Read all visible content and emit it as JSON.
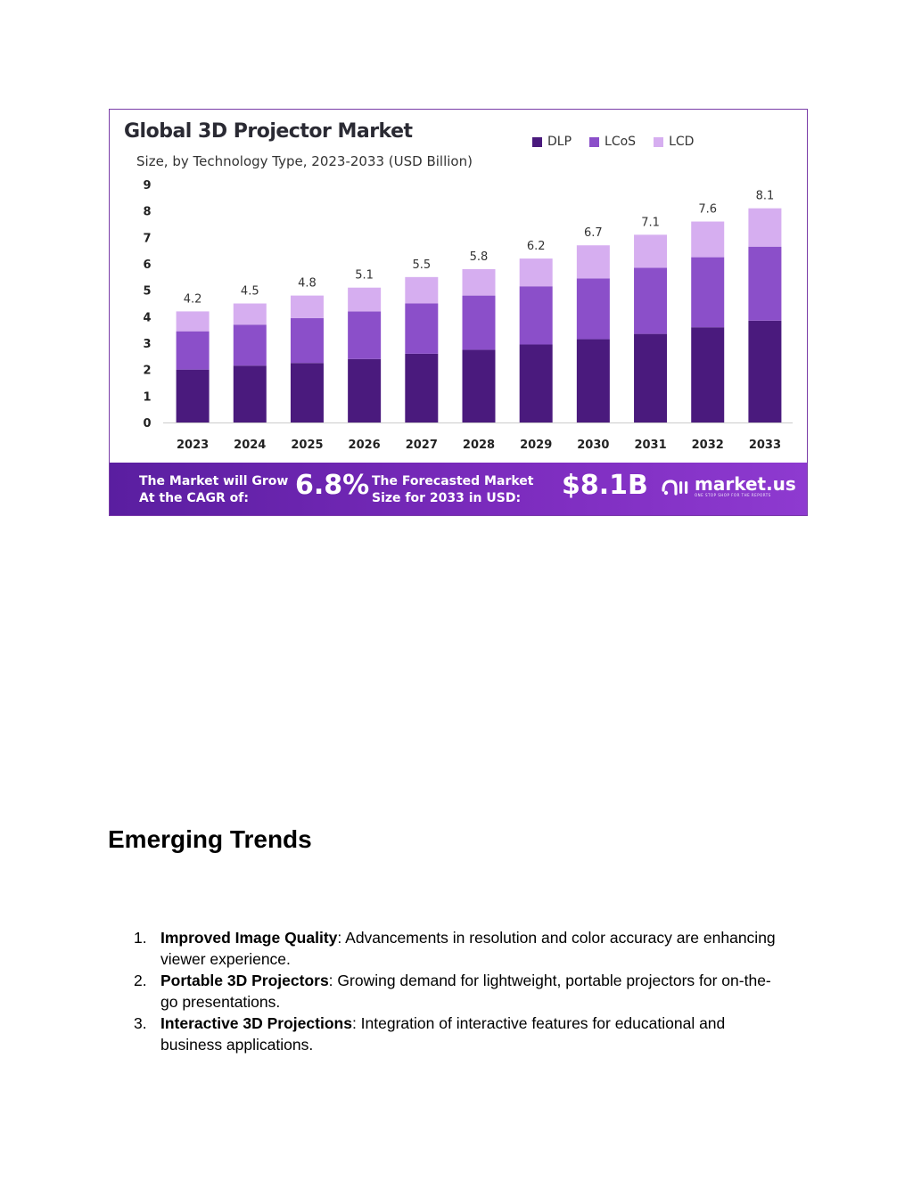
{
  "figure": {
    "title": "Global 3D Projector Market",
    "subtitle": "Size, by Technology Type, 2023-2033 (USD Billion)",
    "banner": {
      "growth_text": "The Market will Grow At the CAGR of:",
      "cagr_value": "6.8%",
      "forecast_text": "The Forecasted Market Size for 2033 in USD:",
      "forecast_value": "$8.1B",
      "brand_name": "market.us",
      "brand_tagline": "ONE STOP SHOP FOR THE REPORTS"
    },
    "colors": {
      "DLP": "#4a1a7d",
      "LCoS": "#8b4fc9",
      "LCD": "#d6aef0",
      "frame": "#7a3ca8"
    }
  },
  "chart_data": {
    "type": "bar",
    "stacked": true,
    "title": "Global 3D Projector Market",
    "subtitle": "Size, by Technology Type, 2023-2033 (USD Billion)",
    "categories": [
      "2023",
      "2024",
      "2025",
      "2026",
      "2027",
      "2028",
      "2029",
      "2030",
      "2031",
      "2032",
      "2033"
    ],
    "series": [
      {
        "name": "DLP",
        "values": [
          2.0,
          2.15,
          2.25,
          2.4,
          2.6,
          2.75,
          2.95,
          3.15,
          3.35,
          3.6,
          3.85
        ]
      },
      {
        "name": "LCoS",
        "values": [
          1.45,
          1.55,
          1.7,
          1.8,
          1.9,
          2.05,
          2.2,
          2.3,
          2.5,
          2.65,
          2.8
        ]
      },
      {
        "name": "LCD",
        "values": [
          0.75,
          0.8,
          0.85,
          0.9,
          1.0,
          1.0,
          1.05,
          1.25,
          1.25,
          1.35,
          1.45
        ]
      }
    ],
    "totals": [
      "4.2",
      "4.5",
      "4.8",
      "5.1",
      "5.5",
      "5.8",
      "6.2",
      "6.7",
      "7.1",
      "7.6",
      "8.1"
    ],
    "yticks": [
      "0",
      "1",
      "2",
      "3",
      "4",
      "5",
      "6",
      "7",
      "8",
      "9"
    ],
    "ylim": [
      0,
      9
    ],
    "grid": false,
    "legend_position": "top-right"
  },
  "section": {
    "heading": "Emerging Trends",
    "items": [
      {
        "number": "1.",
        "term": "Improved Image Quality",
        "text": ": Advancements in resolution and color accuracy are enhancing viewer experience."
      },
      {
        "number": "2.",
        "term": "Portable 3D Projectors",
        "text": ": Growing demand for lightweight, portable projectors for on-the-go presentations."
      },
      {
        "number": "3.",
        "term": "Interactive 3D Projections",
        "text": ": Integration of interactive features for educational and business applications."
      }
    ]
  }
}
